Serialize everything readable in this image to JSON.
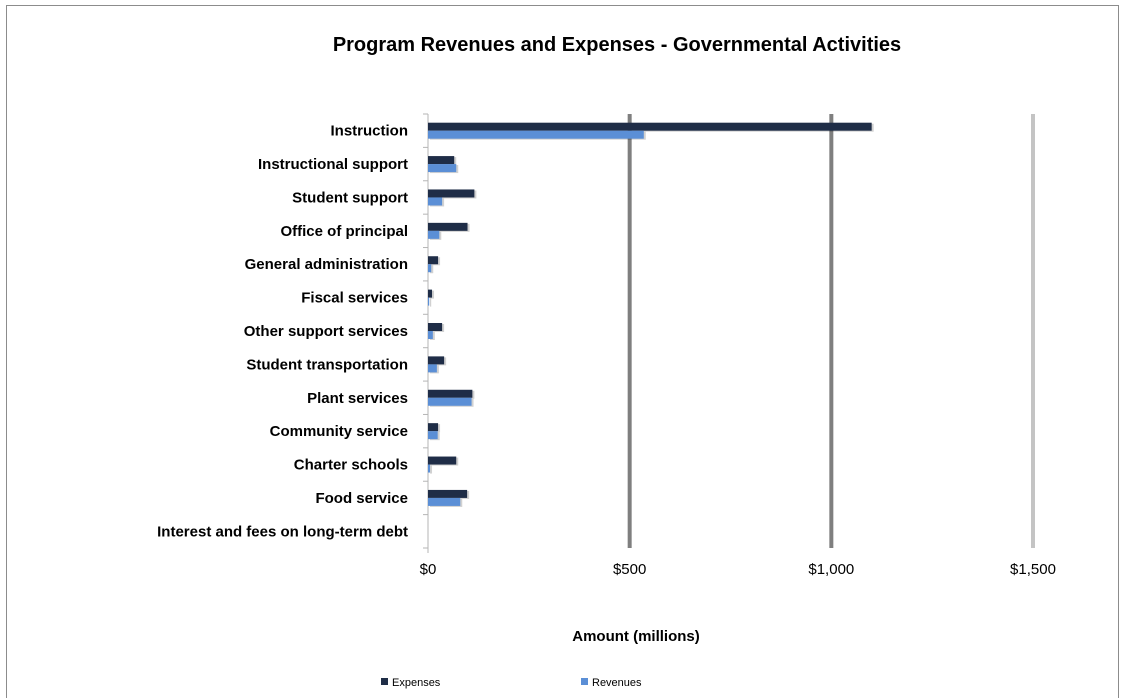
{
  "chart_data": {
    "type": "bar",
    "orientation": "horizontal",
    "title": "Program Revenues and Expenses - Governmental Activities",
    "xlabel": "Amount (millions)",
    "ylabel": "",
    "xlim": [
      0,
      1500
    ],
    "x_ticks": [
      0,
      500,
      1000,
      1500
    ],
    "x_tick_labels": [
      "$0",
      "$500",
      "$1,000",
      "$1,500"
    ],
    "grid": "vertical",
    "legend_position": "bottom",
    "categories": [
      "Instruction",
      "Instructional support",
      "Student support",
      "Office of principal",
      "General administration",
      "Fiscal services",
      "Other support services",
      "Student transportation",
      "Plant services",
      "Community service",
      "Charter schools",
      "Food service",
      "Interest and fees on long-term debt"
    ],
    "series": [
      {
        "name": "Expenses",
        "color": "#1f2d47",
        "values": [
          1100,
          65,
          115,
          98,
          25,
          10,
          35,
          40,
          110,
          25,
          70,
          97,
          0
        ]
      },
      {
        "name": "Revenues",
        "color": "#5b8fd6",
        "values": [
          535,
          70,
          35,
          28,
          8,
          3,
          12,
          22,
          108,
          24,
          5,
          80,
          0
        ]
      }
    ]
  }
}
